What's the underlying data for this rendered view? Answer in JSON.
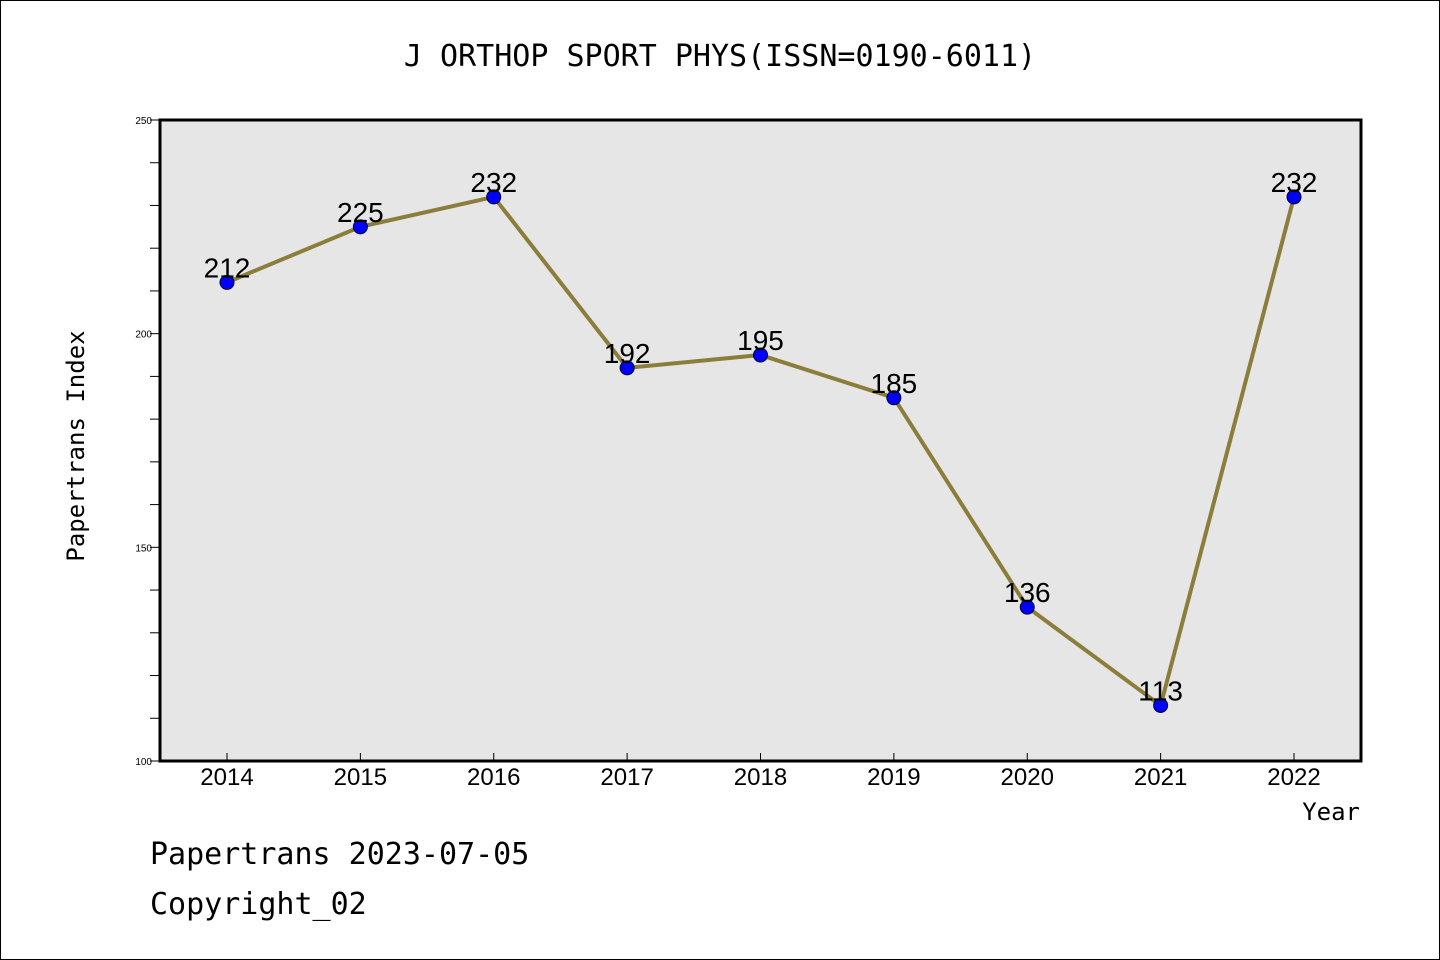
{
  "chart_data": {
    "type": "line",
    "title": "J ORTHOP SPORT PHYS(ISSN=0190-6011)",
    "xlabel": "Year",
    "ylabel": "Papertrans Index",
    "categories": [
      "2014",
      "2015",
      "2016",
      "2017",
      "2018",
      "2019",
      "2020",
      "2021",
      "2022"
    ],
    "values": [
      212,
      225,
      232,
      192,
      195,
      185,
      136,
      113,
      232
    ],
    "data_labels": [
      "212",
      "225",
      "232",
      "192",
      "195",
      "185",
      "136",
      "113",
      "232"
    ],
    "ylim": [
      100,
      250
    ],
    "yticks": [
      "100",
      "150",
      "200",
      "250"
    ],
    "grid": false,
    "colors": {
      "line": "#8B7D3A",
      "marker": "#0000FF",
      "plot_background": "#E6E6E6"
    }
  },
  "footer": {
    "line1": "Papertrans 2023-07-05",
    "line2": "Copyright_02"
  }
}
